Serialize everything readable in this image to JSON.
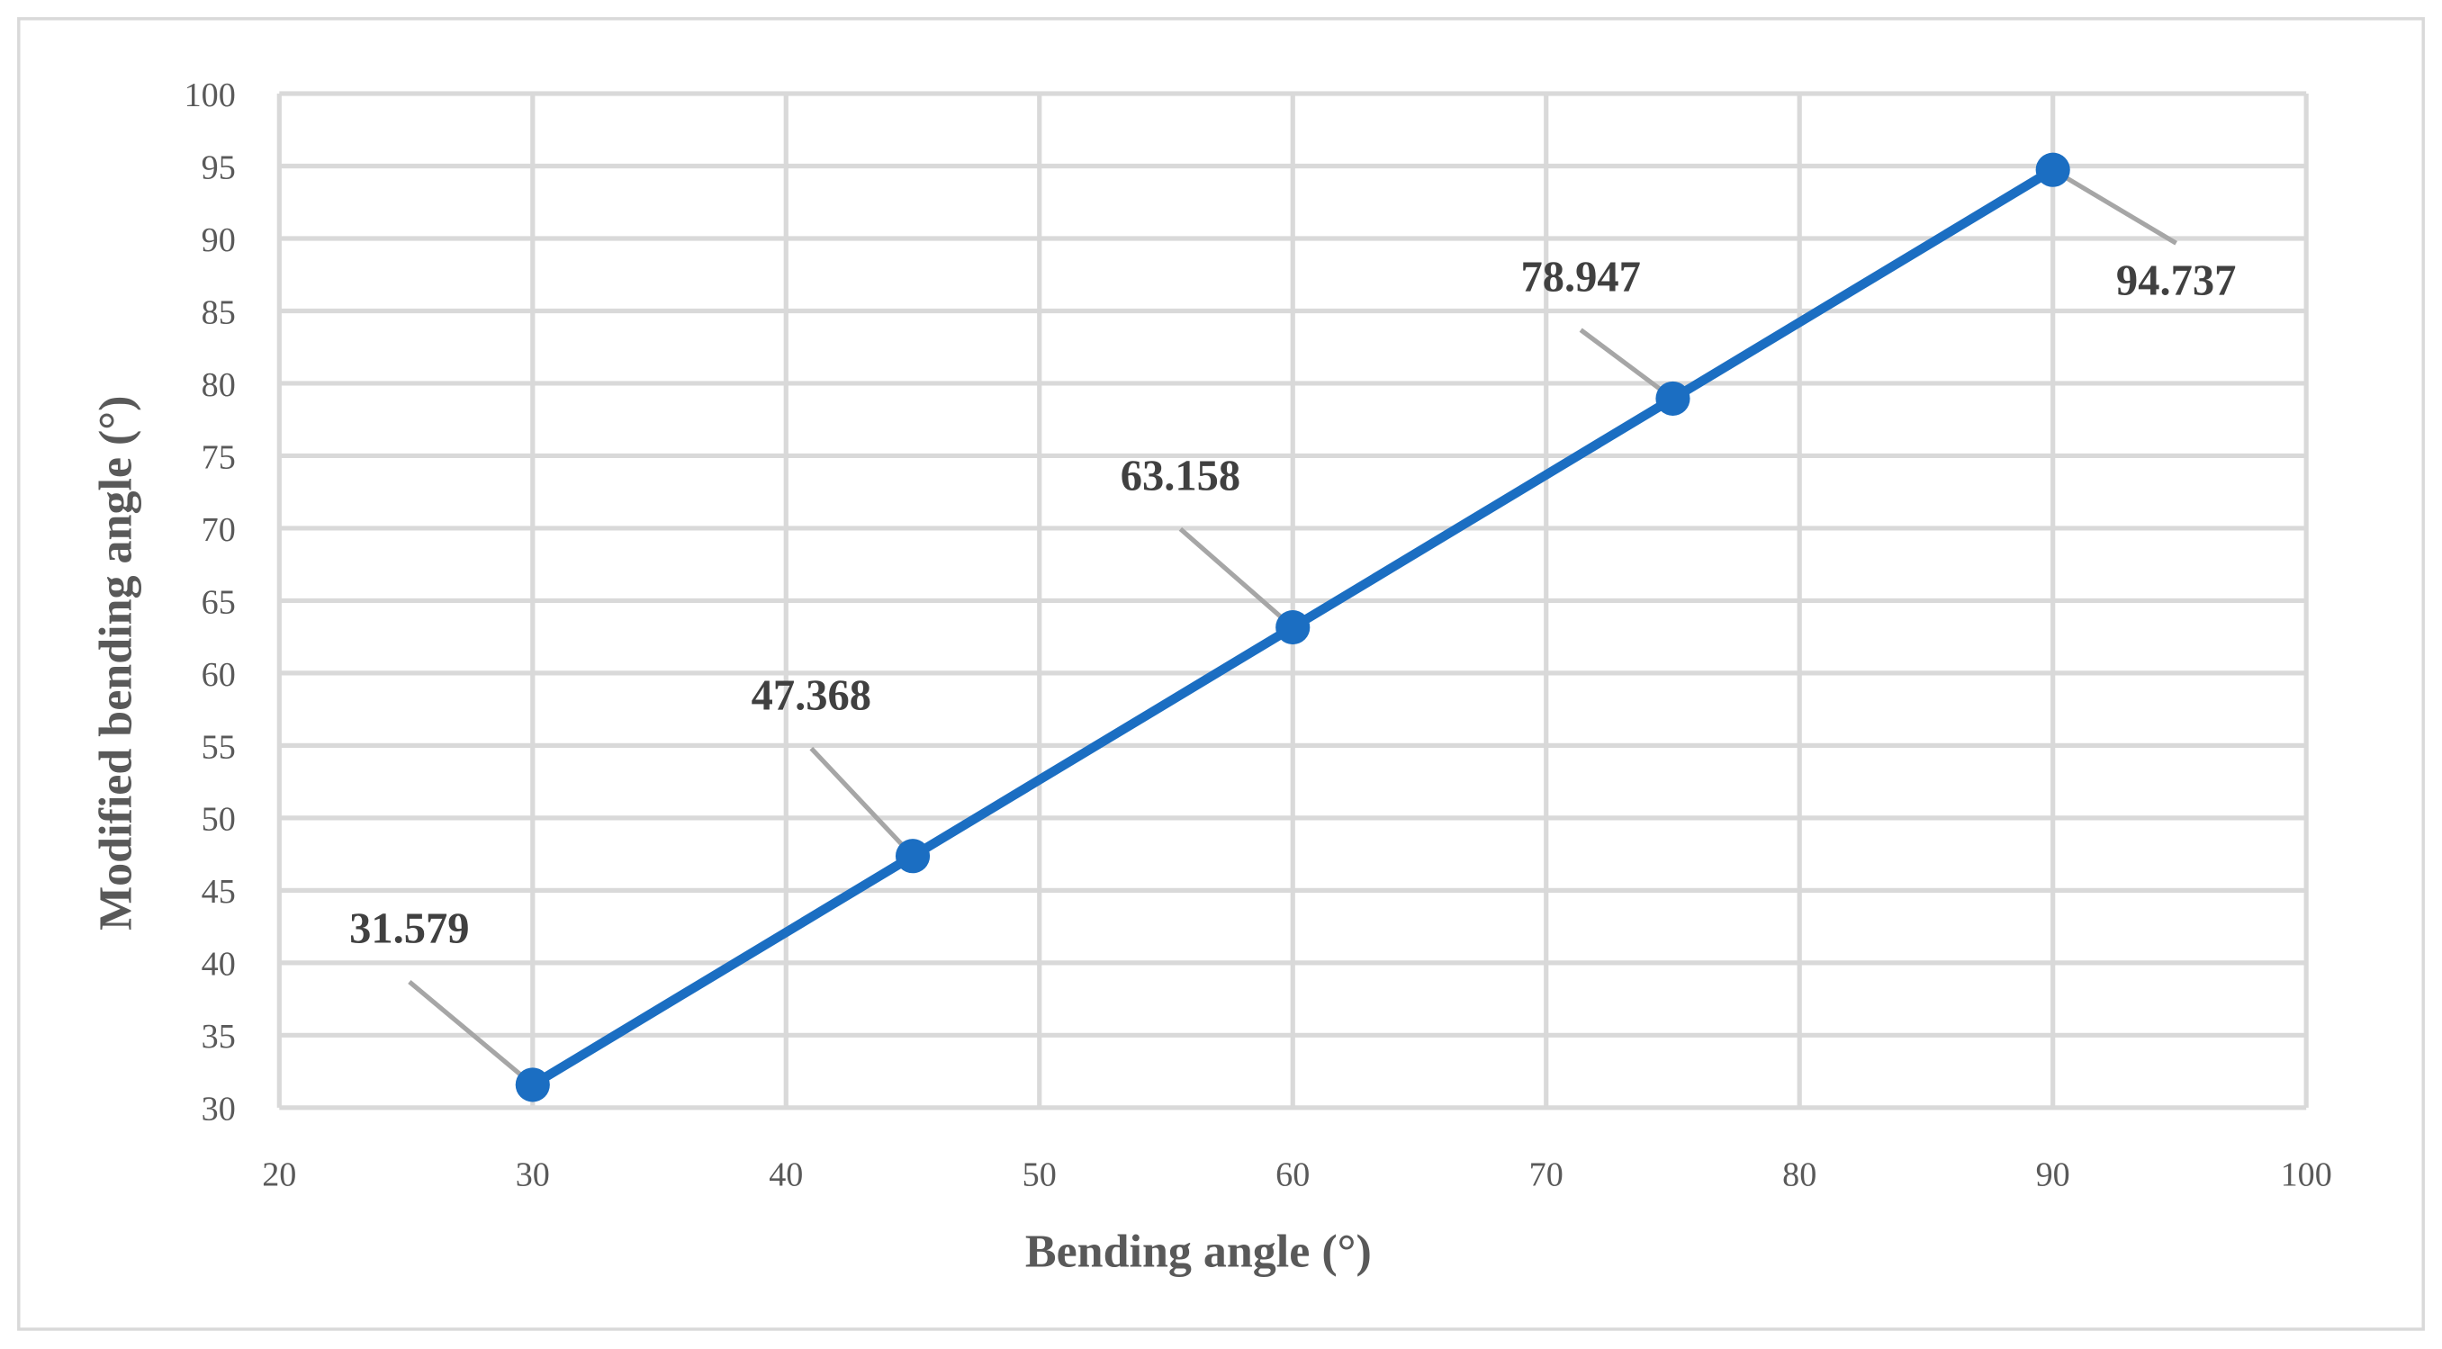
{
  "chart_data": {
    "type": "line",
    "x_label": "Bending angle (°)",
    "y_label": "Modified bending angle (°)",
    "x": [
      30,
      45,
      60,
      75,
      90
    ],
    "values": [
      31.579,
      47.368,
      63.158,
      78.947,
      94.737
    ],
    "color": "#1b6ec2",
    "markers": true,
    "data_labels": true,
    "xlim": [
      20,
      100
    ],
    "xticks": [
      20,
      30,
      40,
      50,
      60,
      70,
      80,
      90,
      100
    ],
    "ylim": [
      30,
      100
    ],
    "yticks": [
      30,
      35,
      40,
      45,
      50,
      55,
      60,
      65,
      70,
      75,
      80,
      85,
      90,
      95,
      100
    ],
    "grid": true
  }
}
